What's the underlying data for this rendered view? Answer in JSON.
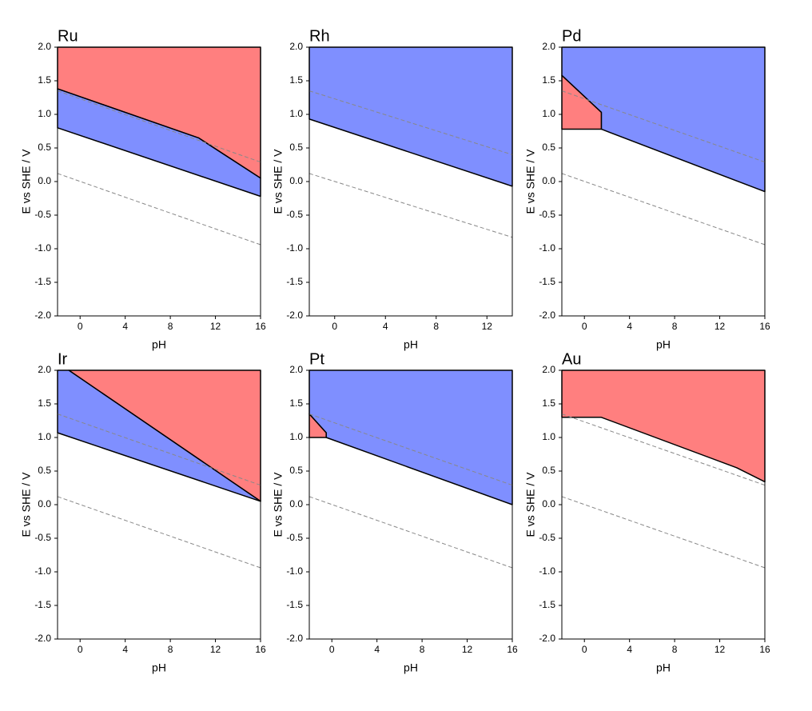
{
  "chart_data": [
    {
      "type": "area",
      "title": "Ru",
      "x_label": "pH",
      "y_label": "E vs SHE / V",
      "xlim": [
        -2,
        16
      ],
      "ylim": [
        -2,
        2
      ],
      "xticks": [
        0,
        4,
        8,
        12,
        16
      ],
      "yticks": [
        {
          "value": -2,
          "label": "-2.0"
        },
        {
          "value": -1.5,
          "label": "-1.5"
        },
        {
          "value": -1,
          "label": "-1.0"
        },
        {
          "value": -0.5,
          "label": "-0.5"
        },
        {
          "value": 0,
          "label": "0.0"
        },
        {
          "value": 0.5,
          "label": "0.5"
        },
        {
          "value": 1,
          "label": "1.0"
        },
        {
          "value": 1.5,
          "label": "1.5"
        },
        {
          "value": 2,
          "label": "2.0"
        }
      ],
      "series": [
        {
          "color": "#ff7f7f",
          "x": [
            -2,
            16,
            16,
            10.5,
            -2
          ],
          "values": [
            2,
            2,
            0.05,
            0.65,
            1.38
          ]
        },
        {
          "color": "#7f8fff",
          "x": [
            -2,
            10.5,
            16,
            16,
            -2
          ],
          "values": [
            1.38,
            0.65,
            0.05,
            -0.22,
            0.8
          ]
        }
      ],
      "lines": [
        {
          "color": "#888888",
          "x": [
            -2,
            16
          ],
          "values": [
            1.35,
            0.29
          ]
        },
        {
          "color": "#888888",
          "x": [
            -2,
            16
          ],
          "values": [
            0.12,
            -0.94
          ]
        }
      ],
      "line_style": "dashed"
    },
    {
      "type": "area",
      "title": "Rh",
      "x_label": "pH",
      "y_label": "E vs SHE / V",
      "xlim": [
        -2,
        14
      ],
      "ylim": [
        -2,
        2
      ],
      "xticks": [
        0,
        4,
        8,
        12
      ],
      "yticks": [
        {
          "value": -2,
          "label": "-2.0"
        },
        {
          "value": -1.5,
          "label": "-1.5"
        },
        {
          "value": -1,
          "label": "-1.0"
        },
        {
          "value": -0.5,
          "label": "-0.5"
        },
        {
          "value": 0,
          "label": "0.0"
        },
        {
          "value": 0.5,
          "label": "0.5"
        },
        {
          "value": 1,
          "label": "1.0"
        },
        {
          "value": 1.5,
          "label": "1.5"
        },
        {
          "value": 2,
          "label": "2.0"
        }
      ],
      "series": [
        {
          "color": "#7f8fff",
          "x": [
            -2,
            14,
            14,
            -2
          ],
          "values": [
            2,
            2,
            -0.07,
            0.93
          ]
        }
      ],
      "lines": [
        {
          "color": "#888888",
          "x": [
            -2,
            14
          ],
          "values": [
            1.35,
            0.4
          ]
        },
        {
          "color": "#888888",
          "x": [
            -2,
            14
          ],
          "values": [
            0.12,
            -0.83
          ]
        }
      ],
      "line_style": "dashed"
    },
    {
      "type": "area",
      "title": "Pd",
      "x_label": "pH",
      "y_label": "E vs SHE / V",
      "xlim": [
        -2,
        16
      ],
      "ylim": [
        -2,
        2
      ],
      "xticks": [
        0,
        4,
        8,
        12,
        16
      ],
      "yticks": [
        {
          "value": -2,
          "label": "-2.0"
        },
        {
          "value": -1.5,
          "label": "-1.5"
        },
        {
          "value": -1,
          "label": "-1.0"
        },
        {
          "value": -0.5,
          "label": "-0.5"
        },
        {
          "value": 0,
          "label": "0.0"
        },
        {
          "value": 0.5,
          "label": "0.5"
        },
        {
          "value": 1,
          "label": "1.0"
        },
        {
          "value": 1.5,
          "label": "1.5"
        },
        {
          "value": 2,
          "label": "2.0"
        }
      ],
      "series": [
        {
          "color": "#7f8fff",
          "x": [
            -2,
            16,
            16,
            1.5,
            1.5,
            -2
          ],
          "values": [
            2,
            2,
            -0.15,
            0.78,
            1.03,
            1.58
          ]
        },
        {
          "color": "#ff7f7f",
          "x": [
            -2,
            1.5,
            1.5,
            -2
          ],
          "values": [
            1.58,
            1.03,
            0.78,
            0.78
          ]
        }
      ],
      "lines": [
        {
          "color": "#888888",
          "x": [
            -2,
            16
          ],
          "values": [
            1.35,
            0.29
          ]
        },
        {
          "color": "#888888",
          "x": [
            -2,
            16
          ],
          "values": [
            0.12,
            -0.94
          ]
        }
      ],
      "line_style": "dashed"
    },
    {
      "type": "area",
      "title": "Ir",
      "x_label": "pH",
      "y_label": "E vs SHE / V",
      "xlim": [
        -2,
        16
      ],
      "ylim": [
        -2,
        2
      ],
      "xticks": [
        0,
        4,
        8,
        12,
        16
      ],
      "yticks": [
        {
          "value": -2,
          "label": "-2.0"
        },
        {
          "value": -1.5,
          "label": "-1.5"
        },
        {
          "value": -1,
          "label": "-1.0"
        },
        {
          "value": -0.5,
          "label": "-0.5"
        },
        {
          "value": 0,
          "label": "0.0"
        },
        {
          "value": 0.5,
          "label": "0.5"
        },
        {
          "value": 1,
          "label": "1.0"
        },
        {
          "value": 1.5,
          "label": "1.5"
        },
        {
          "value": 2,
          "label": "2.0"
        }
      ],
      "series": [
        {
          "color": "#ff7f7f",
          "x": [
            -1,
            16,
            16
          ],
          "values": [
            2,
            2,
            0.05
          ]
        },
        {
          "color": "#7f8fff",
          "x": [
            -2,
            -1,
            16,
            -2
          ],
          "values": [
            2,
            2,
            0.05,
            1.07
          ]
        }
      ],
      "lines": [
        {
          "color": "#888888",
          "x": [
            -2,
            16
          ],
          "values": [
            1.35,
            0.29
          ]
        },
        {
          "color": "#888888",
          "x": [
            -2,
            16
          ],
          "values": [
            0.12,
            -0.94
          ]
        }
      ],
      "line_style": "dashed"
    },
    {
      "type": "area",
      "title": "Pt",
      "x_label": "pH",
      "y_label": "E vs SHE / V",
      "xlim": [
        -2,
        16
      ],
      "ylim": [
        -2,
        2
      ],
      "xticks": [
        0,
        4,
        8,
        12,
        16
      ],
      "yticks": [
        {
          "value": -2,
          "label": "-2.0"
        },
        {
          "value": -1.5,
          "label": "-1.5"
        },
        {
          "value": -1,
          "label": "-1.0"
        },
        {
          "value": -0.5,
          "label": "-0.5"
        },
        {
          "value": 0,
          "label": "0.0"
        },
        {
          "value": 0.5,
          "label": "0.5"
        },
        {
          "value": 1,
          "label": "1.0"
        },
        {
          "value": 1.5,
          "label": "1.5"
        },
        {
          "value": 2,
          "label": "2.0"
        }
      ],
      "series": [
        {
          "color": "#7f8fff",
          "x": [
            -2,
            16,
            16,
            -0.5,
            -0.5,
            -2
          ],
          "values": [
            2,
            2,
            0,
            1.0,
            1.07,
            1.35
          ]
        },
        {
          "color": "#ff7f7f",
          "x": [
            -2,
            -0.5,
            -0.5,
            -2
          ],
          "values": [
            1.35,
            1.07,
            1.0,
            1.0
          ]
        }
      ],
      "lines": [
        {
          "color": "#888888",
          "x": [
            -2,
            16
          ],
          "values": [
            1.35,
            0.29
          ]
        },
        {
          "color": "#888888",
          "x": [
            -2,
            16
          ],
          "values": [
            0.12,
            -0.94
          ]
        }
      ],
      "line_style": "dashed"
    },
    {
      "type": "area",
      "title": "Au",
      "x_label": "pH",
      "y_label": "E vs SHE / V",
      "xlim": [
        -2,
        16
      ],
      "ylim": [
        -2,
        2
      ],
      "xticks": [
        0,
        4,
        8,
        12,
        16
      ],
      "yticks": [
        {
          "value": -2,
          "label": "-2.0"
        },
        {
          "value": -1.5,
          "label": "-1.5"
        },
        {
          "value": -1,
          "label": "-1.0"
        },
        {
          "value": -0.5,
          "label": "-0.5"
        },
        {
          "value": 0,
          "label": "0.0"
        },
        {
          "value": 0.5,
          "label": "0.5"
        },
        {
          "value": 1,
          "label": "1.0"
        },
        {
          "value": 1.5,
          "label": "1.5"
        },
        {
          "value": 2,
          "label": "2.0"
        }
      ],
      "series": [
        {
          "color": "#ff7f7f",
          "x": [
            -2,
            16,
            16,
            13.5,
            1.5,
            -2
          ],
          "values": [
            2,
            2,
            0.34,
            0.55,
            1.3,
            1.3
          ]
        }
      ],
      "lines": [
        {
          "color": "#888888",
          "x": [
            -2,
            16
          ],
          "values": [
            1.35,
            0.29
          ]
        },
        {
          "color": "#888888",
          "x": [
            -2,
            16
          ],
          "values": [
            0.12,
            -0.94
          ]
        }
      ],
      "line_style": "dashed"
    }
  ]
}
